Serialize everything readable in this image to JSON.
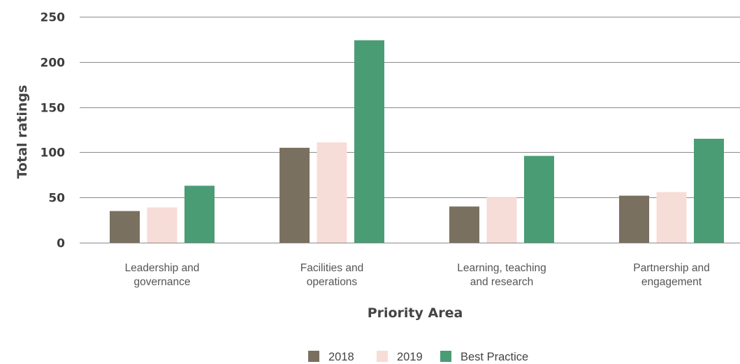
{
  "chart_data": {
    "type": "bar",
    "categories": [
      [
        "Leadership and",
        "governance"
      ],
      [
        "Facilities and",
        "operations"
      ],
      [
        "Learning, teaching",
        "and research"
      ],
      [
        "Partnership and",
        "engagement"
      ]
    ],
    "series": [
      {
        "name": "2018",
        "color": "#7a7060",
        "values": [
          35,
          105,
          40,
          52
        ]
      },
      {
        "name": "2019",
        "color": "#f7ddd7",
        "values": [
          39,
          111,
          50,
          56
        ]
      },
      {
        "name": "Best Practice",
        "color": "#4a9c74",
        "values": [
          63,
          224,
          96,
          115
        ]
      }
    ],
    "xlabel": "Priority Area",
    "ylabel": "Total ratings",
    "ylim": [
      0,
      250
    ],
    "yticks": [
      0,
      50,
      100,
      150,
      200,
      250
    ],
    "grid": true,
    "legend_position": "bottom-center"
  }
}
